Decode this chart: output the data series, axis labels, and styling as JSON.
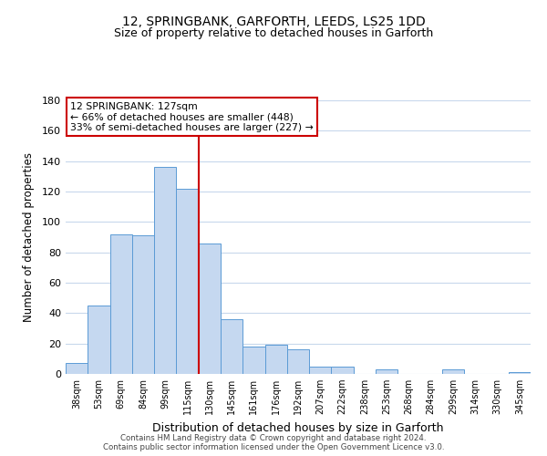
{
  "title": "12, SPRINGBANK, GARFORTH, LEEDS, LS25 1DD",
  "subtitle": "Size of property relative to detached houses in Garforth",
  "xlabel": "Distribution of detached houses by size in Garforth",
  "ylabel": "Number of detached properties",
  "bar_labels": [
    "38sqm",
    "53sqm",
    "69sqm",
    "84sqm",
    "99sqm",
    "115sqm",
    "130sqm",
    "145sqm",
    "161sqm",
    "176sqm",
    "192sqm",
    "207sqm",
    "222sqm",
    "238sqm",
    "253sqm",
    "268sqm",
    "284sqm",
    "299sqm",
    "314sqm",
    "330sqm",
    "345sqm"
  ],
  "bar_values": [
    7,
    45,
    92,
    91,
    136,
    122,
    86,
    36,
    18,
    19,
    16,
    5,
    5,
    0,
    3,
    0,
    0,
    3,
    0,
    0,
    1
  ],
  "bar_color": "#c5d8f0",
  "bar_edge_color": "#5b9bd5",
  "ylim": [
    0,
    180
  ],
  "yticks": [
    0,
    20,
    40,
    60,
    80,
    100,
    120,
    140,
    160,
    180
  ],
  "property_label": "12 SPRINGBANK: 127sqm",
  "annotation_line1": "← 66% of detached houses are smaller (448)",
  "annotation_line2": "33% of semi-detached houses are larger (227) →",
  "vline_color": "#cc0000",
  "footer_line1": "Contains HM Land Registry data © Crown copyright and database right 2024.",
  "footer_line2": "Contains public sector information licensed under the Open Government Licence v3.0.",
  "background_color": "#ffffff",
  "grid_color": "#c8d8ec"
}
